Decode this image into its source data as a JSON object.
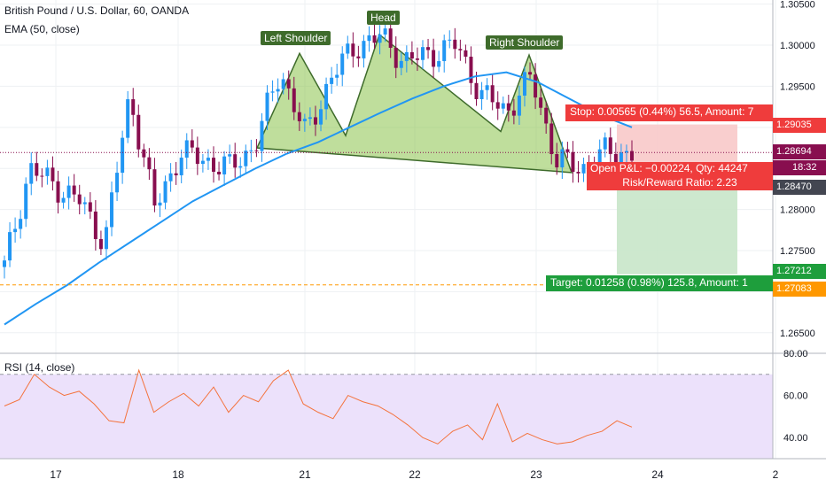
{
  "legend": {
    "symbol_line": "British Pound / U.S. Dollar, 60, OANDA",
    "ema_line": "EMA (50, close)",
    "rsi_line": "RSI (14, close)"
  },
  "pattern_labels": {
    "left_shoulder": "Left Shoulder",
    "head": "Head",
    "right_shoulder": "Right Shoulder"
  },
  "position": {
    "stop_label": "Stop: 0.00565 (0.44%) 56.5, Amount: 7",
    "pnl_label": "Open P&L: −0.00224, Qty: 44247",
    "rr_label": "Risk/Reward Ratio: 2.23",
    "target_label": "Target: 0.01258 (0.98%) 125.8, Amount: 1"
  },
  "price_tags": {
    "stop": "1.29035",
    "current": "1.28694",
    "countdown": "18:32",
    "entry": "1.28470",
    "target": "1.27212",
    "dotted": "1.27083"
  },
  "colors": {
    "bull": "#2196f3",
    "bear": "#880e4f",
    "ema": "#2196f3",
    "pattern_fill": "#8bc34a",
    "stop_zone": "#f8c6c6",
    "target_zone": "#c8e6c9",
    "rsi_line": "#f4733d",
    "rsi_band": "#ece1fb"
  },
  "chart_data": [
    {
      "type": "candlestick",
      "title": "British Pound / U.S. Dollar, 60, OANDA",
      "ylim": [
        1.2625,
        1.3055
      ],
      "yticks": [
        "1.26500",
        "1.27000",
        "1.27500",
        "1.28000",
        "1.28500",
        "1.29000",
        "1.29500",
        "1.30000",
        "1.30500"
      ],
      "xticks": [
        "17",
        "18",
        "21",
        "22",
        "23",
        "24",
        "2"
      ],
      "ema": {
        "name": "EMA (50, close)",
        "values": [
          1.266,
          1.2685,
          1.2708,
          1.2735,
          1.276,
          1.2785,
          1.281,
          1.283,
          1.285,
          1.2868,
          1.2882,
          1.29,
          1.2918,
          1.2935,
          1.295,
          1.2962,
          1.2967,
          1.2955,
          1.2935,
          1.2915,
          1.29
        ]
      },
      "close": [
        1.273,
        1.285,
        1.283,
        1.281,
        1.276,
        1.294,
        1.28,
        1.287,
        1.286,
        1.285,
        1.288,
        1.297,
        1.289,
        1.296,
        1.3,
        1.301,
        1.298,
        1.299,
        1.3,
        1.294,
        1.292,
        1.296,
        1.286,
        1.285,
        1.287,
        1.2869
      ],
      "pattern_points": [
        1.2875,
        1.299,
        1.289,
        1.3013,
        1.2895,
        1.2988,
        1.2845
      ]
    },
    {
      "type": "line",
      "title": "RSI (14, close)",
      "ylim": [
        30,
        80
      ],
      "yticks": [
        "40.00",
        "60.00",
        "80.00"
      ],
      "bands": [
        70,
        30
      ],
      "values": [
        55,
        58,
        70,
        64,
        60,
        62,
        56,
        48,
        47,
        72,
        52,
        57,
        61,
        55,
        64,
        52,
        60,
        57,
        67,
        72,
        56,
        52,
        49,
        60,
        57,
        55,
        51,
        46,
        40,
        37,
        43,
        46,
        39,
        56,
        38,
        42,
        39,
        37,
        38,
        41,
        43,
        48,
        45
      ]
    }
  ]
}
